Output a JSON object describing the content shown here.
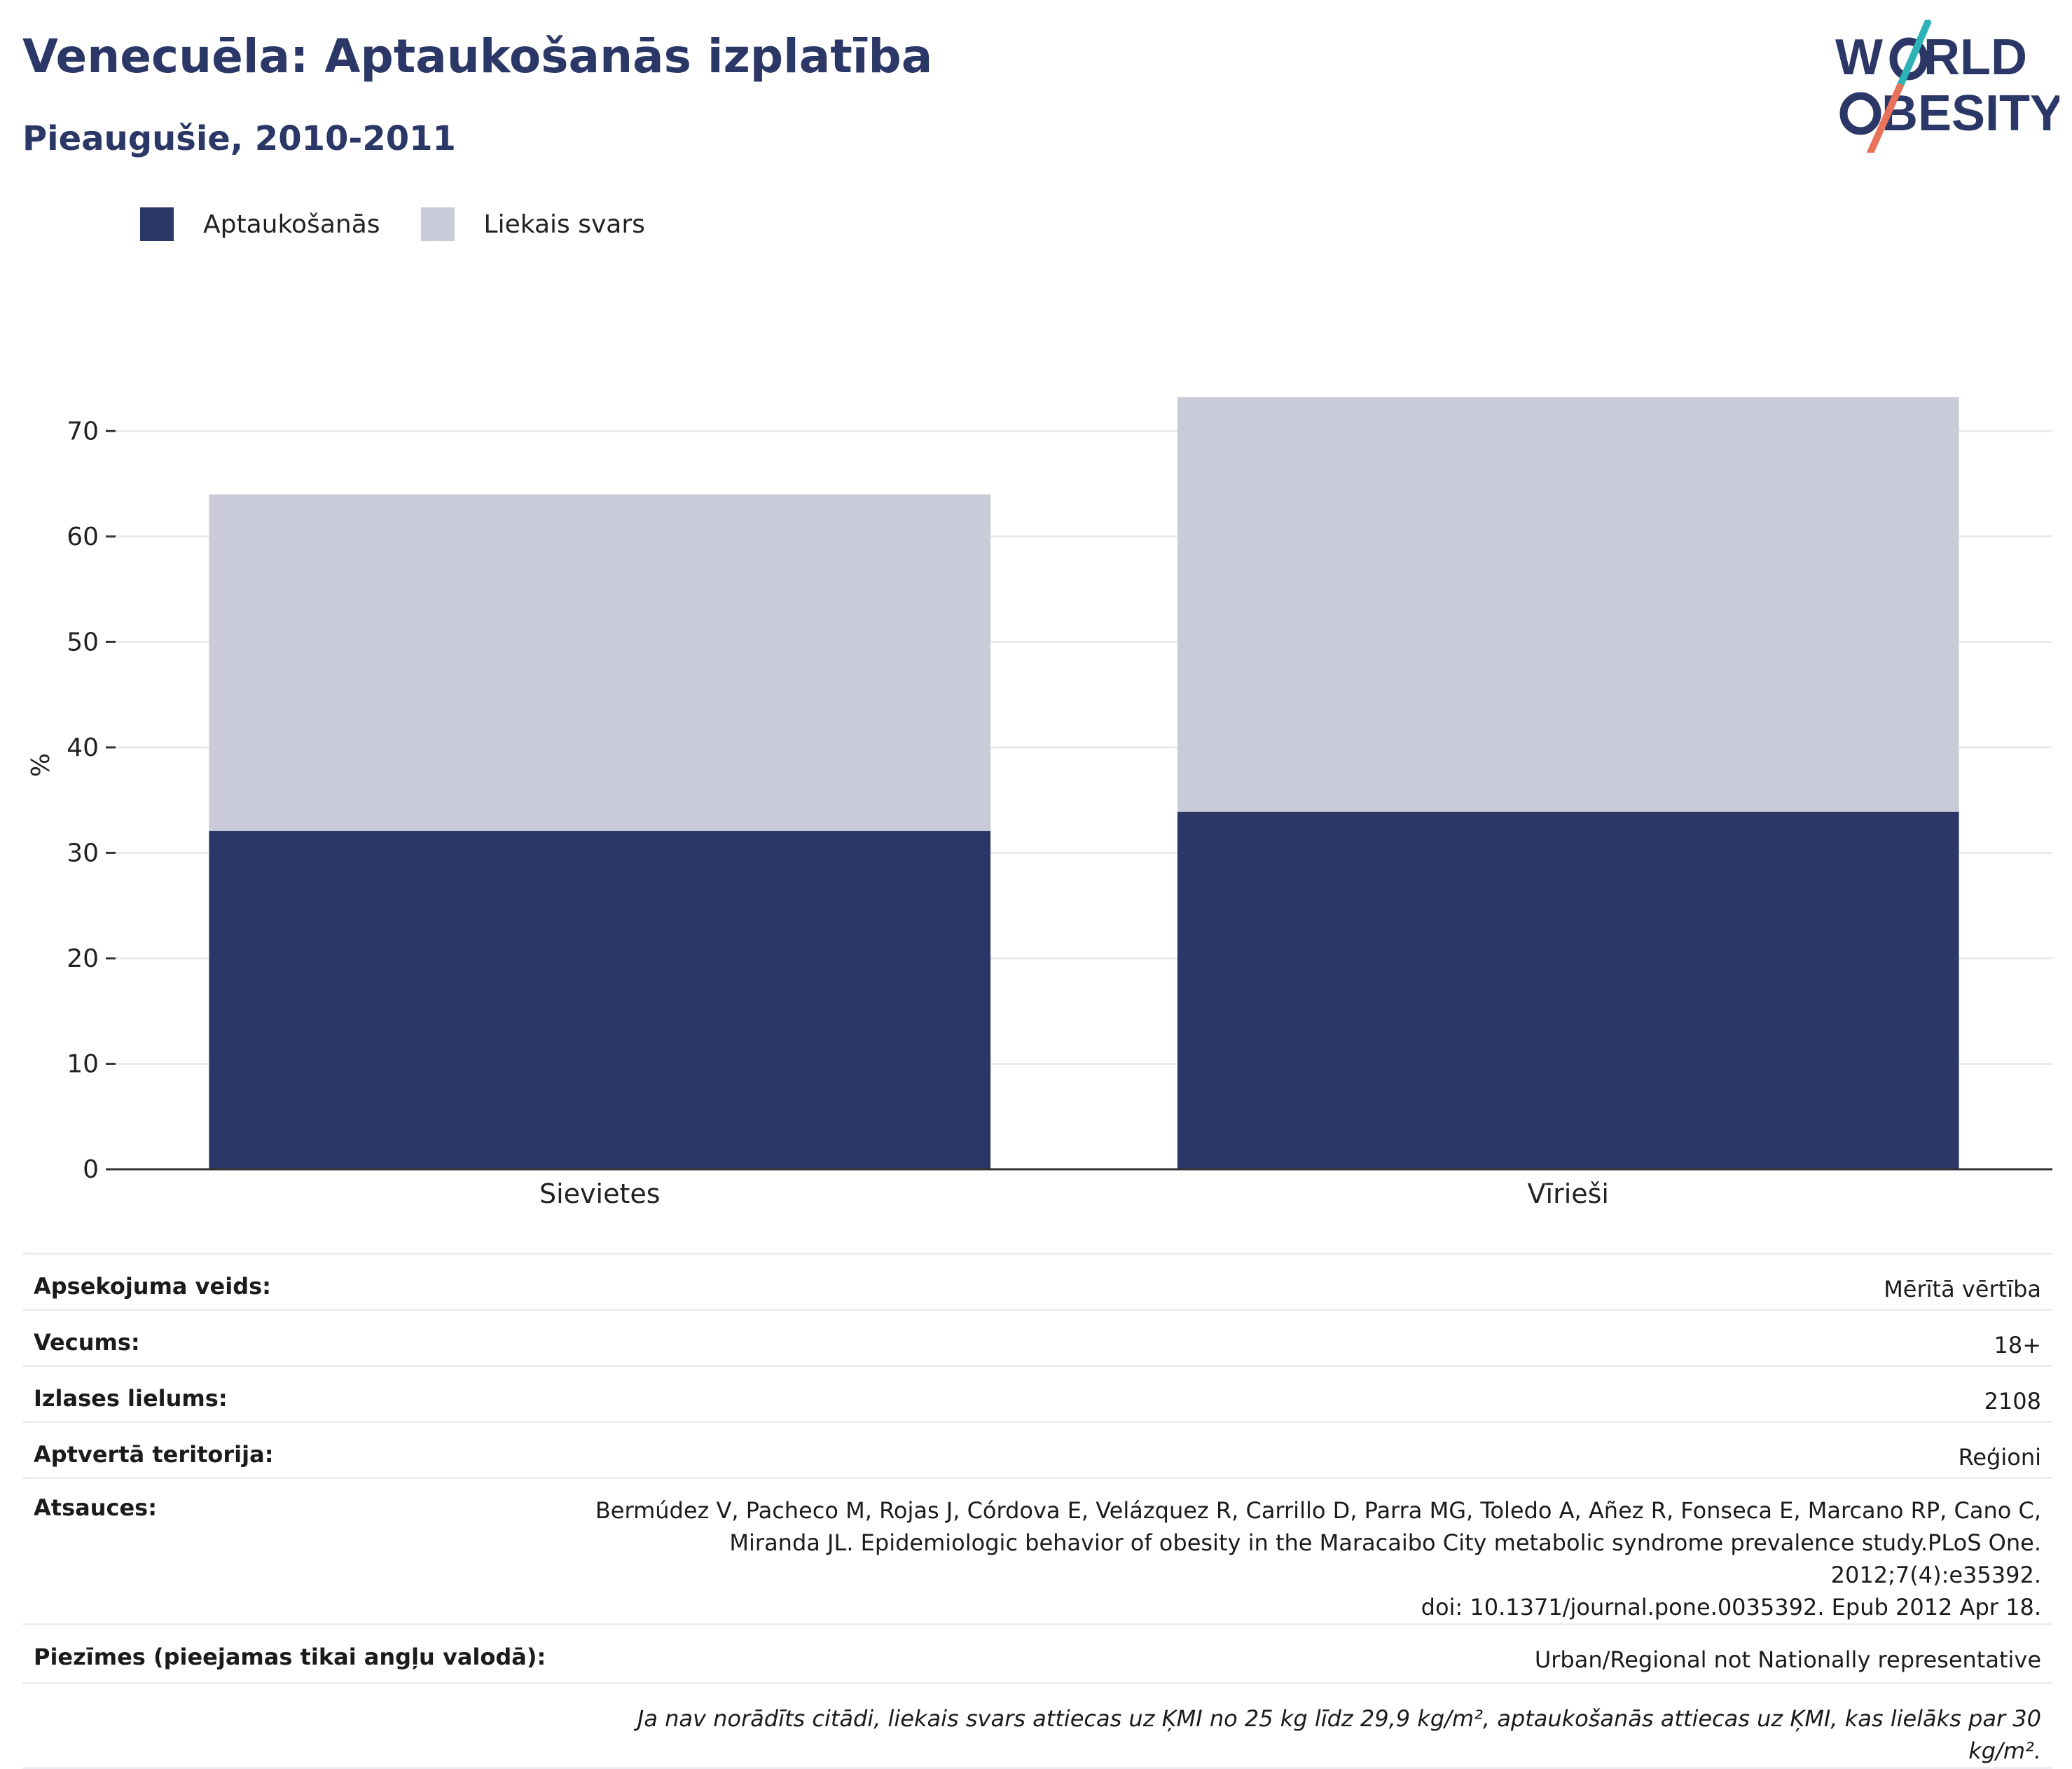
{
  "header": {
    "title": "Venecuēla: Aptaukošanās izplatība",
    "subtitle": "Pieaugušie, 2010-2011"
  },
  "logo": {
    "line1_a": "W",
    "line1_b": "RLD",
    "line2_a": "",
    "line2_b": "BESITY",
    "colors": {
      "text": "#2b3766",
      "slash_teal": "#2bb3b8",
      "slash_coral": "#e8735a"
    }
  },
  "legend": {
    "items": [
      {
        "label": "Aptaukošanās",
        "color": "#2b3766"
      },
      {
        "label": "Liekais svars",
        "color": "#c9ccd8"
      }
    ]
  },
  "chart_data": {
    "type": "bar",
    "stacked": true,
    "categories": [
      "Sievietes",
      "Vīrieši"
    ],
    "series": [
      {
        "name": "Aptaukošanās",
        "values": [
          32.1,
          33.9
        ],
        "color": "#2b3766"
      },
      {
        "name": "Liekais svars",
        "values": [
          31.9,
          39.3
        ],
        "color": "#c9ccd8"
      }
    ],
    "ylabel": "%",
    "ylim": [
      0,
      75
    ],
    "yticks": [
      0,
      10,
      20,
      30,
      40,
      50,
      60,
      70
    ],
    "grid": true,
    "legend_position": "top-left"
  },
  "info": {
    "rows": [
      {
        "key": "Apsekojuma veids:",
        "value": "Mērītā vērtība"
      },
      {
        "key": "Vecums:",
        "value": "18+"
      },
      {
        "key": "Izlases lielums:",
        "value": "2108"
      },
      {
        "key": "Aptvertā teritorija:",
        "value": "Reģioni"
      },
      {
        "key": "Atsauces:",
        "value_lines": [
          "Bermúdez V, Pacheco M, Rojas J, Córdova E, Velázquez R, Carrillo D, Parra MG, Toledo A, Añez R, Fonseca E, Marcano RP, Cano C,",
          "Miranda JL. Epidemiologic behavior of obesity in the Maracaibo City metabolic syndrome prevalence study.PLoS One. 2012;7(4):e35392.",
          "doi: 10.1371/journal.pone.0035392. Epub 2012 Apr 18."
        ]
      },
      {
        "key": "Piezīmes (pieejamas tikai angļu valodā):",
        "value": "Urban/Regional not Nationally representative"
      }
    ],
    "footnote": "Ja nav norādīts citādi, liekais svars attiecas uz ĶMI no 25 kg līdz 29,9 kg/m², aptaukošanās attiecas uz ĶMI, kas lielāks par 30 kg/m²."
  }
}
